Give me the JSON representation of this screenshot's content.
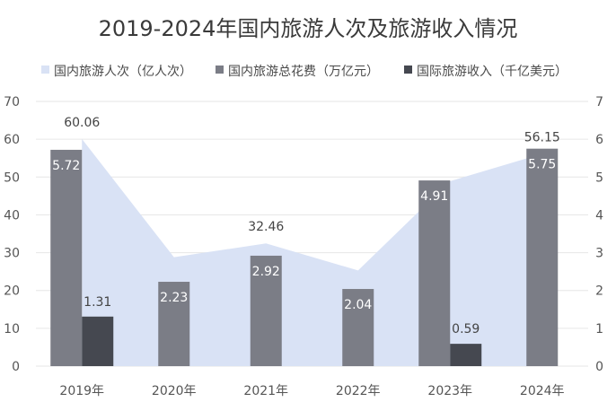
{
  "chart_data": {
    "type": "bar",
    "title": "2019-2024年国内旅游人次及旅游收入情况",
    "categories": [
      "2019年",
      "2020年",
      "2021年",
      "2022年",
      "2023年",
      "2024年"
    ],
    "y_left": {
      "range": [
        0,
        70
      ],
      "ticks": [
        "0",
        "10",
        "20",
        "30",
        "40",
        "50",
        "60",
        "70"
      ]
    },
    "y_right": {
      "range": [
        0,
        7
      ],
      "ticks": [
        "0",
        "1",
        "2",
        "3",
        "4",
        "5",
        "6",
        "7"
      ]
    },
    "grid": true,
    "legend_position": "top",
    "series": [
      {
        "name": "国内旅游人次（亿人次）",
        "kind": "area",
        "axis": "left",
        "color": "#d9e2f5",
        "values": [
          60.06,
          28.79,
          32.46,
          25.3,
          48.91,
          56.15
        ],
        "labels": [
          "60.06",
          "",
          "32.46",
          "",
          "",
          "56.15"
        ]
      },
      {
        "name": "国内旅游总花费（万亿元）",
        "kind": "bar",
        "axis": "right",
        "color": "#7b7d86",
        "values": [
          5.72,
          2.23,
          2.92,
          2.04,
          4.91,
          5.75
        ],
        "labels": [
          "5.72",
          "2.23",
          "2.92",
          "2.04",
          "4.91",
          "5.75"
        ]
      },
      {
        "name": "国际旅游收入（千亿美元）",
        "kind": "bar",
        "axis": "right",
        "color": "#454850",
        "values": [
          1.31,
          null,
          null,
          null,
          0.59,
          null
        ],
        "labels": [
          "1.31",
          "",
          "",
          "",
          "0.59",
          ""
        ]
      }
    ]
  }
}
